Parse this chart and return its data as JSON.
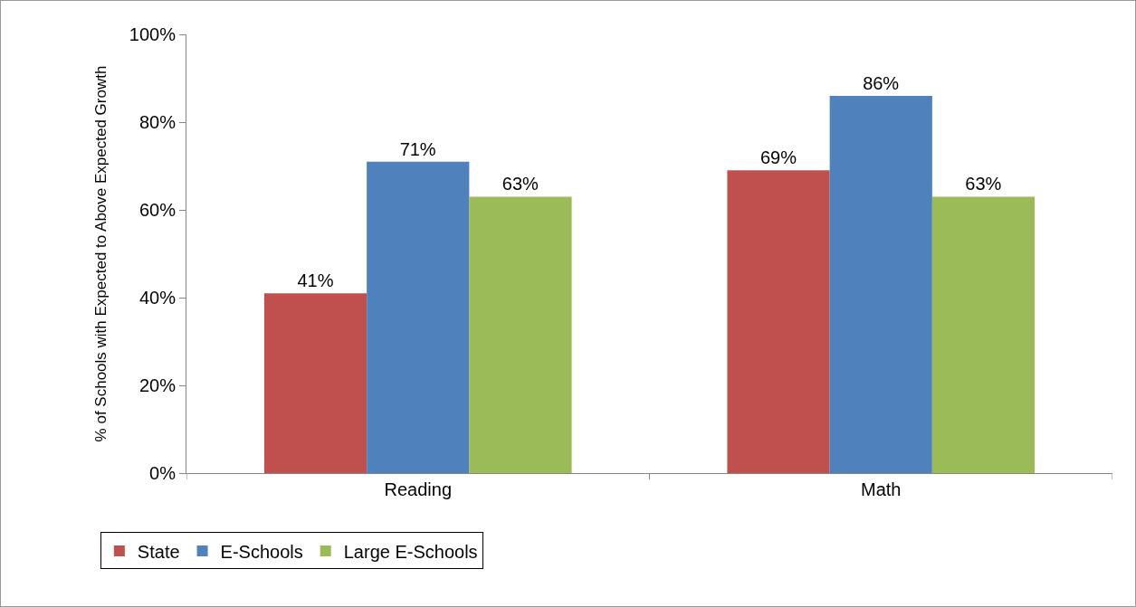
{
  "chart_data": {
    "type": "bar",
    "ylabel": "% of Schools with Expected to Above Expected Growth",
    "categories": [
      "Reading",
      "Math"
    ],
    "series": [
      {
        "name": "State",
        "color": "#c0504d",
        "values": [
          41,
          69
        ],
        "value_labels": [
          "41%",
          "69%"
        ]
      },
      {
        "name": "E-Schools",
        "color": "#4f81bd",
        "values": [
          71,
          86
        ],
        "value_labels": [
          "71%",
          "86%"
        ]
      },
      {
        "name": "Large E-Schools",
        "color": "#9bbb59",
        "values": [
          63,
          63
        ],
        "value_labels": [
          "63%",
          "63%"
        ]
      }
    ],
    "ylim": [
      0,
      100
    ],
    "yticks": [
      {
        "value": 0,
        "label": "0%"
      },
      {
        "value": 20,
        "label": "20%"
      },
      {
        "value": 40,
        "label": "40%"
      },
      {
        "value": 60,
        "label": "60%"
      },
      {
        "value": 80,
        "label": "80%"
      },
      {
        "value": 100,
        "label": "100%"
      }
    ],
    "grid": false,
    "legend": "bottom"
  }
}
